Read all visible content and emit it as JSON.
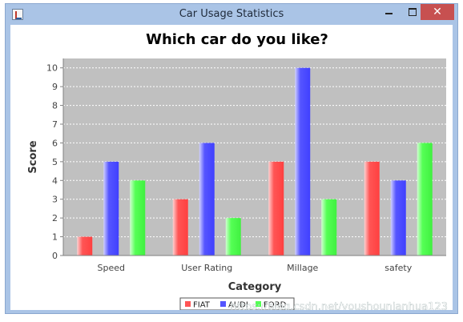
{
  "window": {
    "title": "Car Usage Statistics",
    "minimize_icon": "minimize-icon",
    "maximize_icon": "maximize-icon",
    "close_label": "✕"
  },
  "watermark": "https://blog.csdn.net/youshounianhua123",
  "colors": {
    "plot_background": "#c0c0c0",
    "FIAT": "#ff5555",
    "AUDI": "#5555ff",
    "FORD": "#55ff55"
  },
  "chart_data": {
    "type": "bar",
    "title": "Which car do you like?",
    "xlabel": "Category",
    "ylabel": "Score",
    "categories": [
      "Speed",
      "User Rating",
      "Millage",
      "safety"
    ],
    "series": [
      {
        "name": "FIAT",
        "values": [
          1,
          3,
          5,
          5
        ]
      },
      {
        "name": "AUDI",
        "values": [
          5,
          6,
          10,
          4
        ]
      },
      {
        "name": "FORD",
        "values": [
          4,
          2,
          3,
          6
        ]
      }
    ],
    "ylim": [
      0,
      10.5
    ],
    "yticks": [
      "0",
      "1",
      "2",
      "3",
      "4",
      "5",
      "6",
      "7",
      "8",
      "9",
      "10"
    ],
    "grid": true,
    "legend_position": "bottom"
  }
}
